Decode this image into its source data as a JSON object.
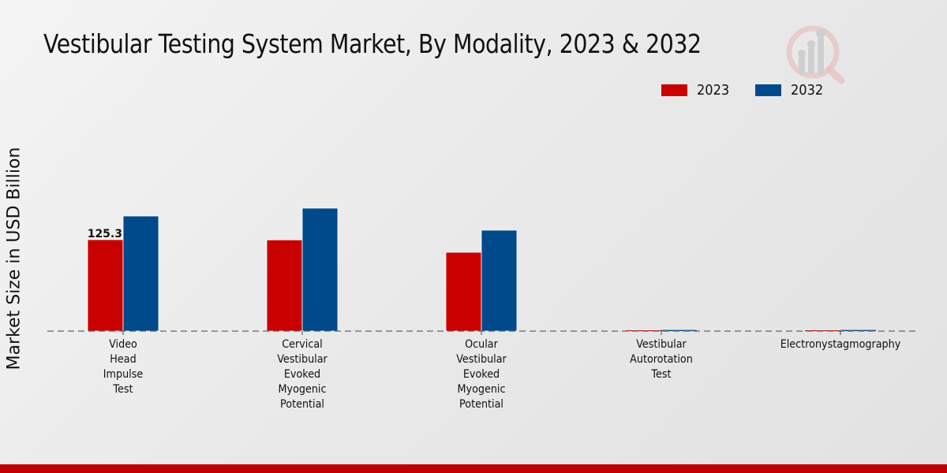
{
  "title": "Vestibular Testing System Market, By Modality, 2023 & 2032",
  "logo": {
    "icon": "analytics-magnifier-logo-icon"
  },
  "colors": {
    "series_2023": "#c80000",
    "series_2032": "#004a8b",
    "footer": "#bf0000",
    "baseline": "#666666"
  },
  "chart_data": {
    "type": "bar",
    "title": "Vestibular Testing System Market, By Modality, 2023 & 2032",
    "xlabel": "",
    "ylabel": "Market Size in USD Billion",
    "categories": [
      "Video Head Impulse Test",
      "Cervical Vestibular Evoked Myogenic Potential",
      "Ocular Vestibular Evoked Myogenic Potential",
      "Vestibular Autorotation Test",
      "Electronystagmography"
    ],
    "category_lines": [
      [
        "Video",
        "Head",
        "Impulse",
        "Test"
      ],
      [
        "Cervical",
        "Vestibular",
        "Evoked",
        "Myogenic",
        "Potential"
      ],
      [
        "Ocular",
        "Vestibular",
        "Evoked",
        "Myogenic",
        "Potential"
      ],
      [
        "Vestibular",
        "Autorotation",
        "Test"
      ],
      [
        "Electronystagmography"
      ]
    ],
    "series": [
      {
        "name": "2023",
        "color": "#c80000",
        "values": [
          125.3,
          125.0,
          108.0,
          1.0,
          1.0
        ]
      },
      {
        "name": "2032",
        "color": "#004a8b",
        "values": [
          157.7,
          168.5,
          138.3,
          1.5,
          1.5
        ]
      }
    ],
    "data_labels": [
      {
        "series": "2023",
        "category": "Video Head Impulse Test",
        "text": "125.3"
      }
    ],
    "ylim": [
      0,
      280
    ],
    "grid": false,
    "legend": {
      "position": "top-right",
      "entries": [
        "2023",
        "2032"
      ]
    },
    "baseline": "dashed"
  }
}
